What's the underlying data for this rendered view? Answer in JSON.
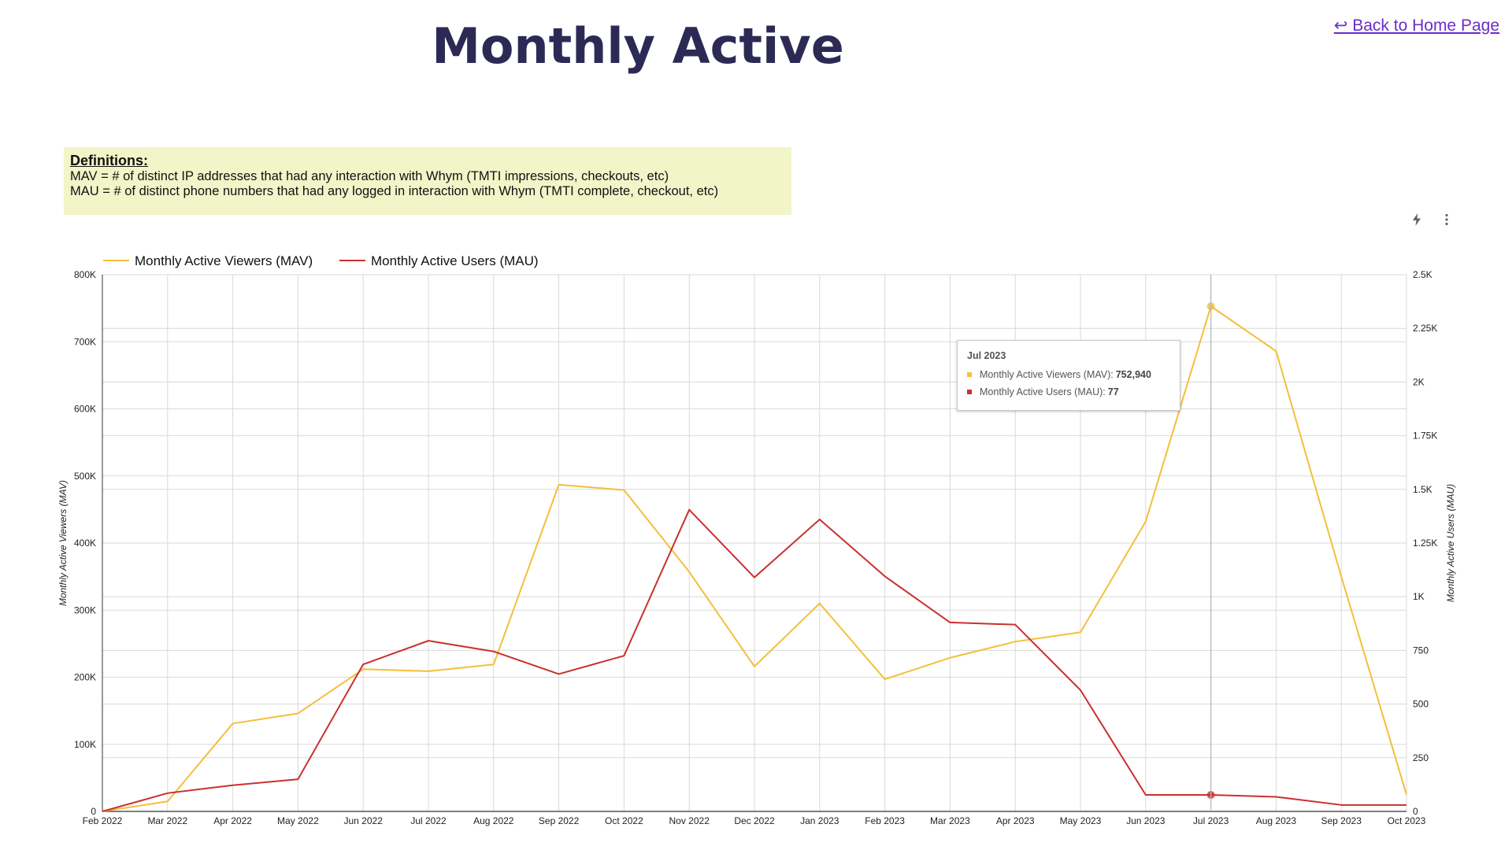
{
  "page": {
    "title": "Monthly Active",
    "back_link": "↩ Back to Home Page"
  },
  "definitions": {
    "heading": "Definitions:",
    "mav": "MAV = # of distinct IP addresses that had any interaction with Whym (TMTI impressions, checkouts, etc)",
    "mau": "MAU = # of distinct phone numbers that had any logged in interaction with Whym (TMTI complete, checkout, etc)"
  },
  "toolbar": {
    "icons": [
      "lightning-icon",
      "more-vertical-icon"
    ]
  },
  "tooltip": {
    "title": "Jul 2023",
    "mav_label": "Monthly Active Viewers (MAV):",
    "mav_value": "752,940",
    "mau_label": "Monthly Active Users (MAU):",
    "mau_value": "77"
  },
  "colors": {
    "mav": "#f4bf3a",
    "mau": "#c9302f",
    "grid": "#d9d9d9",
    "axis": "#333333"
  },
  "chart_data": {
    "type": "line",
    "x": [
      "Feb 2022",
      "Mar 2022",
      "Apr 2022",
      "May 2022",
      "Jun 2022",
      "Jul 2022",
      "Aug 2022",
      "Sep 2022",
      "Oct 2022",
      "Nov 2022",
      "Dec 2022",
      "Jan 2023",
      "Feb 2023",
      "Mar 2023",
      "Apr 2023",
      "May 2023",
      "Jun 2023",
      "Jul 2023",
      "Aug 2023",
      "Sep 2023",
      "Oct 2023"
    ],
    "series": [
      {
        "name": "Monthly Active Viewers (MAV)",
        "axis": "left",
        "color": "#f4bf3a",
        "values": [
          0,
          15000,
          131000,
          146000,
          212000,
          209000,
          219000,
          487000,
          479000,
          357000,
          216000,
          310000,
          197000,
          229000,
          253000,
          267000,
          432000,
          752940,
          686000,
          350000,
          25000
        ]
      },
      {
        "name": "Monthly Active Users (MAU)",
        "axis": "right",
        "color": "#c9302f",
        "values": [
          0,
          85,
          122,
          150,
          685,
          795,
          745,
          640,
          725,
          1405,
          1090,
          1360,
          1095,
          880,
          870,
          565,
          77,
          77,
          68,
          30,
          30
        ]
      }
    ],
    "ylabel_left": "Monthly Active Viewers (MAV)",
    "ylabel_right": "Monthly Active Users (MAU)",
    "ylim_left": [
      0,
      800000
    ],
    "ylim_right": [
      0,
      2500
    ],
    "yticks_left": [
      "0",
      "100K",
      "200K",
      "300K",
      "400K",
      "500K",
      "600K",
      "700K",
      "800K"
    ],
    "yticks_right": [
      "0",
      "250",
      "500",
      "750",
      "1K",
      "1.25K",
      "1.5K",
      "1.75K",
      "2K",
      "2.25K",
      "2.5K"
    ],
    "legend": "top-left",
    "grid": true,
    "highlight_index": 17
  }
}
